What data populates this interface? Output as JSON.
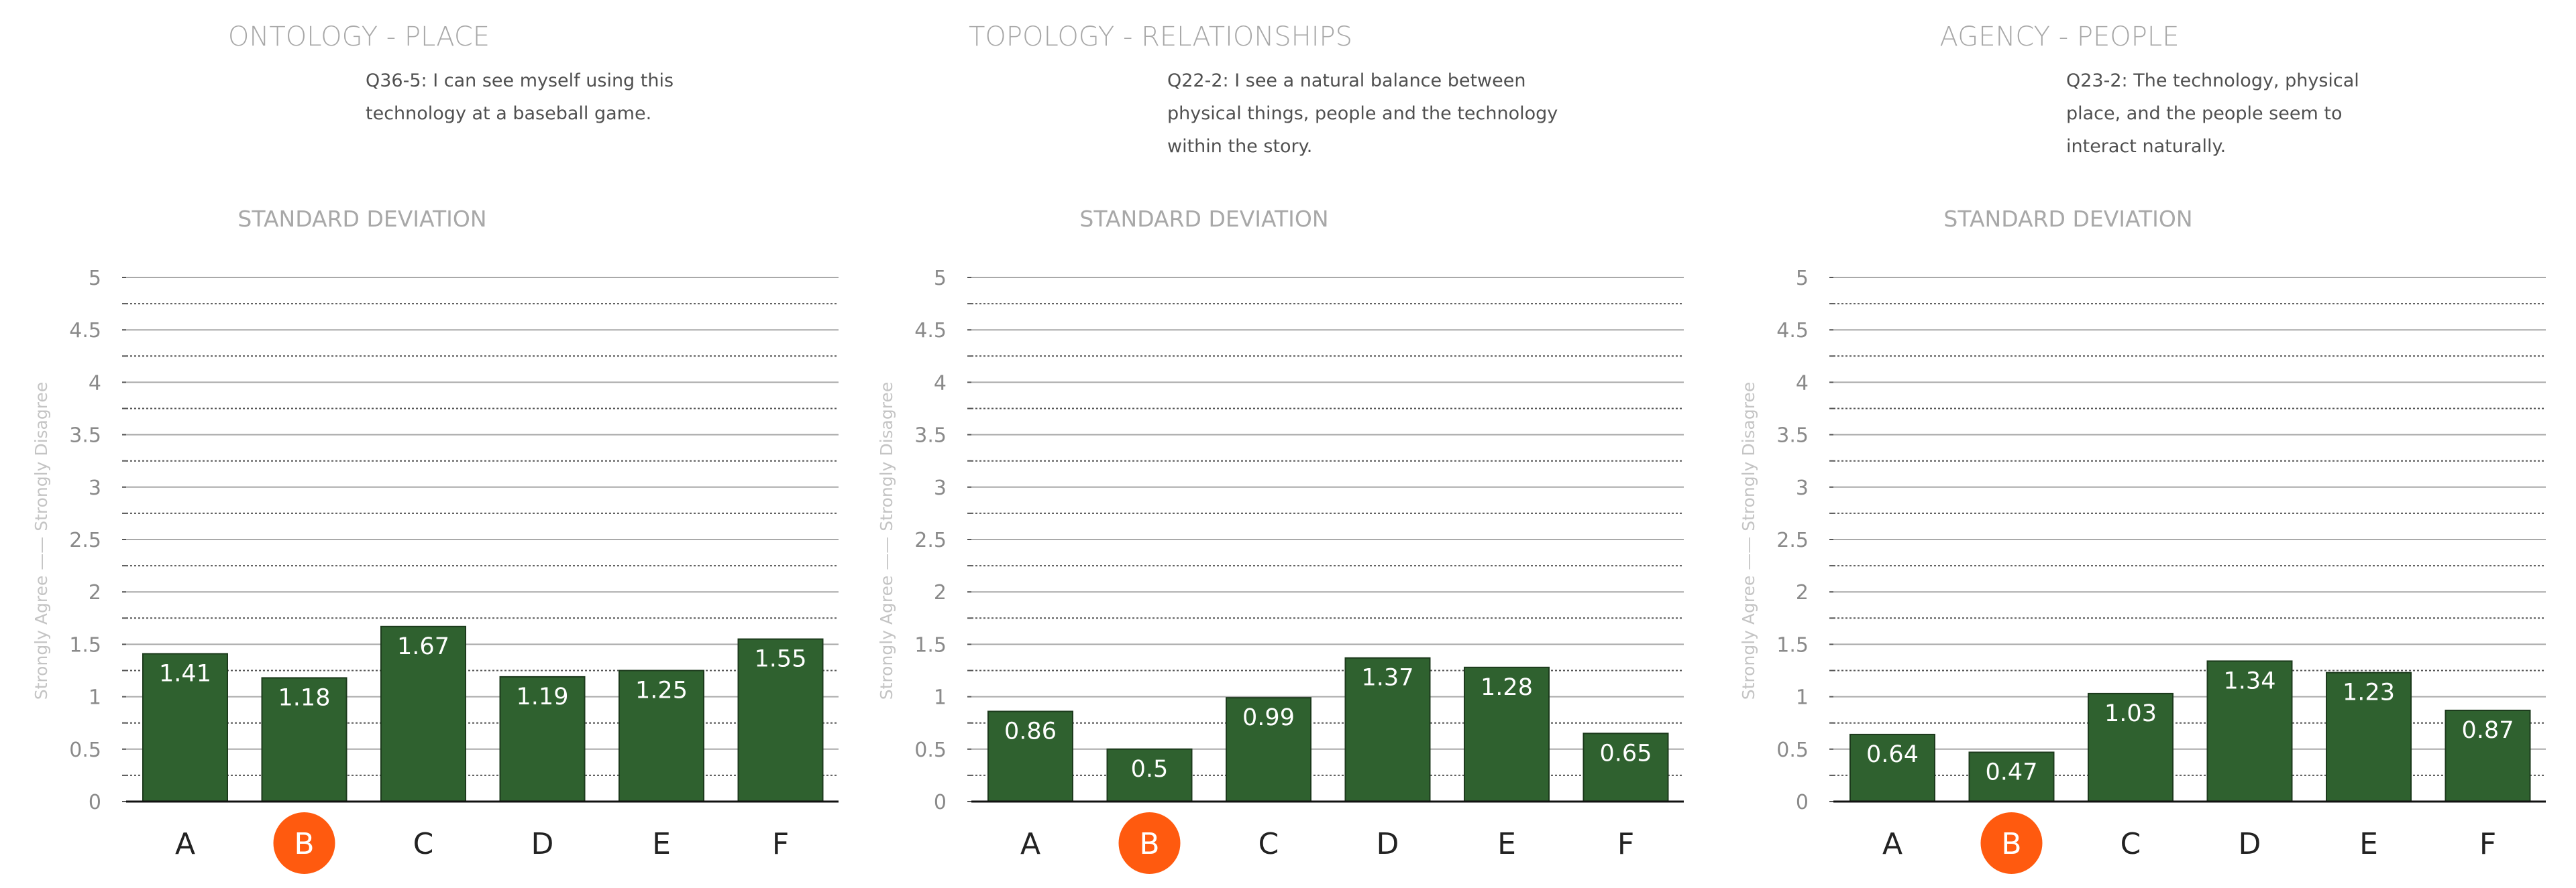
{
  "colors": {
    "bar_fill": "#2f612f",
    "bar_stroke": "#1c3a1c",
    "highlight_circle": "#ff5a0f",
    "grid_major": "#a9a9a9",
    "grid_minor": "#555555",
    "axis": "#111111"
  },
  "chart_data": [
    {
      "type": "bar",
      "title": "ONTOLOGY - PLACE",
      "question": [
        "Q36-5: I can see myself using this",
        "technology at a baseball game."
      ],
      "subtitle": "STANDARD DEVIATION",
      "ylabel": "Strongly Agree —— Strongly Disagree",
      "categories": [
        "A",
        "B",
        "C",
        "D",
        "E",
        "F"
      ],
      "highlight_category": "B",
      "values": [
        1.41,
        1.18,
        1.67,
        1.19,
        1.25,
        1.55
      ],
      "value_labels": [
        "1.41",
        "1.18",
        "1.67",
        "1.19",
        "1.25",
        "1.55"
      ],
      "ylim": [
        0,
        5
      ],
      "yticks": [
        "0",
        "0.5",
        "1",
        "1.5",
        "2",
        "2.5",
        "3",
        "3.5",
        "4",
        "4.5",
        "5"
      ],
      "grid": true
    },
    {
      "type": "bar",
      "title": "TOPOLOGY - RELATIONSHIPS",
      "question": [
        "Q22-2: I see a natural balance between",
        "physical things, people and the technology",
        "within the story."
      ],
      "subtitle": "STANDARD DEVIATION",
      "ylabel": "Strongly Agree —— Strongly Disagree",
      "categories": [
        "A",
        "B",
        "C",
        "D",
        "E",
        "F"
      ],
      "highlight_category": "B",
      "values": [
        0.86,
        0.5,
        0.99,
        1.37,
        1.28,
        0.65
      ],
      "value_labels": [
        "0.86",
        "0.5",
        "0.99",
        "1.37",
        "1.28",
        "0.65"
      ],
      "ylim": [
        0,
        5
      ],
      "yticks": [
        "0",
        "0.5",
        "1",
        "1.5",
        "2",
        "2.5",
        "3",
        "3.5",
        "4",
        "4.5",
        "5"
      ],
      "grid": true
    },
    {
      "type": "bar",
      "title": "AGENCY - PEOPLE",
      "question": [
        "Q23-2: The technology, physical",
        "place, and the people seem to",
        "interact naturally."
      ],
      "subtitle": "STANDARD DEVIATION",
      "ylabel": "Strongly Agree —— Strongly Disagree",
      "categories": [
        "A",
        "B",
        "C",
        "D",
        "E",
        "F"
      ],
      "highlight_category": "B",
      "values": [
        0.64,
        0.47,
        1.03,
        1.34,
        1.23,
        0.87
      ],
      "value_labels": [
        "0.64",
        "0.47",
        "1.03",
        "1.34",
        "1.23",
        "0.87"
      ],
      "ylim": [
        0,
        5
      ],
      "yticks": [
        "0",
        "0.5",
        "1",
        "1.5",
        "2",
        "2.5",
        "3",
        "3.5",
        "4",
        "4.5",
        "5"
      ],
      "grid": true
    }
  ]
}
